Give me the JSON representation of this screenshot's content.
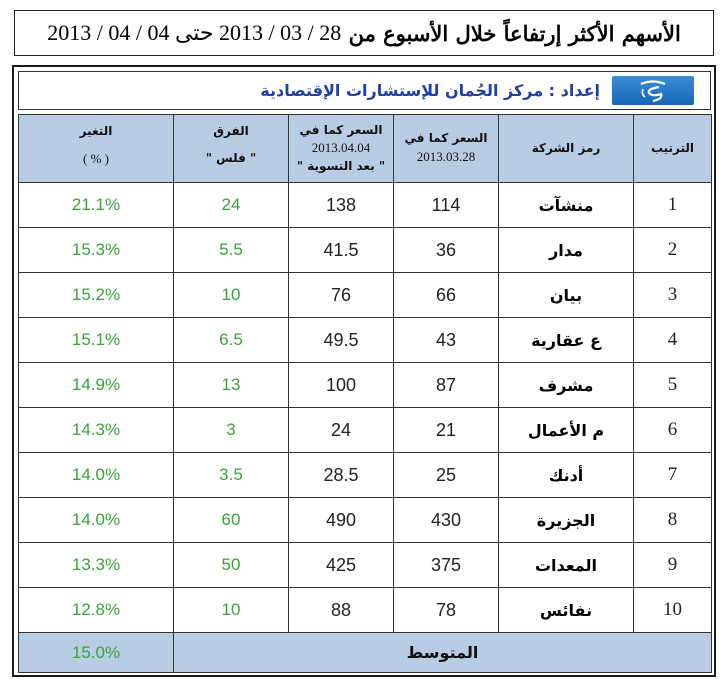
{
  "title": {
    "text": "الأسهم الأكثر إرتفاعاً خلال الأسبوع من",
    "dates": "28 / 03 / 2013 حتى 04 / 04 / 2013"
  },
  "prepared_by": "إعداد : مركز الجُمان للإستشارات الإقتصادية",
  "headers": {
    "rank": "الترتيب",
    "symbol": "رمز الشركة",
    "price_start": "السعر كما في",
    "price_start_date": "2013.03.28",
    "price_end": "السعر كما في",
    "price_end_date": "2013.04.04",
    "price_end_note": "\" بعد التسوية \"",
    "diff": "الفرق",
    "diff_unit": "\" فلس \"",
    "change": "التغير",
    "change_unit": "( % )"
  },
  "rows": [
    {
      "rank": "1",
      "symbol": "منشآت",
      "start": "114",
      "end": "138",
      "diff": "24",
      "change": "21.1%"
    },
    {
      "rank": "2",
      "symbol": "مدار",
      "start": "36",
      "end": "41.5",
      "diff": "5.5",
      "change": "15.3%"
    },
    {
      "rank": "3",
      "symbol": "بيان",
      "start": "66",
      "end": "76",
      "diff": "10",
      "change": "15.2%"
    },
    {
      "rank": "4",
      "symbol": "ع عقارية",
      "start": "43",
      "end": "49.5",
      "diff": "6.5",
      "change": "15.1%"
    },
    {
      "rank": "5",
      "symbol": "مشرف",
      "start": "87",
      "end": "100",
      "diff": "13",
      "change": "14.9%"
    },
    {
      "rank": "6",
      "symbol": "م الأعمال",
      "start": "21",
      "end": "24",
      "diff": "3",
      "change": "14.3%"
    },
    {
      "rank": "7",
      "symbol": "أدنك",
      "start": "25",
      "end": "28.5",
      "diff": "3.5",
      "change": "14.0%"
    },
    {
      "rank": "8",
      "symbol": "الجزيرة",
      "start": "430",
      "end": "490",
      "diff": "60",
      "change": "14.0%"
    },
    {
      "rank": "9",
      "symbol": "المعدات",
      "start": "375",
      "end": "425",
      "diff": "50",
      "change": "13.3%"
    },
    {
      "rank": "10",
      "symbol": "نفائس",
      "start": "78",
      "end": "88",
      "diff": "10",
      "change": "12.8%"
    }
  ],
  "footer": {
    "label": "المتوسط",
    "value": "15.0%"
  },
  "colors": {
    "header_bg": "#b8cce4",
    "positive_text": "#3aa33a",
    "prep_text": "#1f3fa5"
  },
  "logo_icon": "aljuman-logo-icon"
}
